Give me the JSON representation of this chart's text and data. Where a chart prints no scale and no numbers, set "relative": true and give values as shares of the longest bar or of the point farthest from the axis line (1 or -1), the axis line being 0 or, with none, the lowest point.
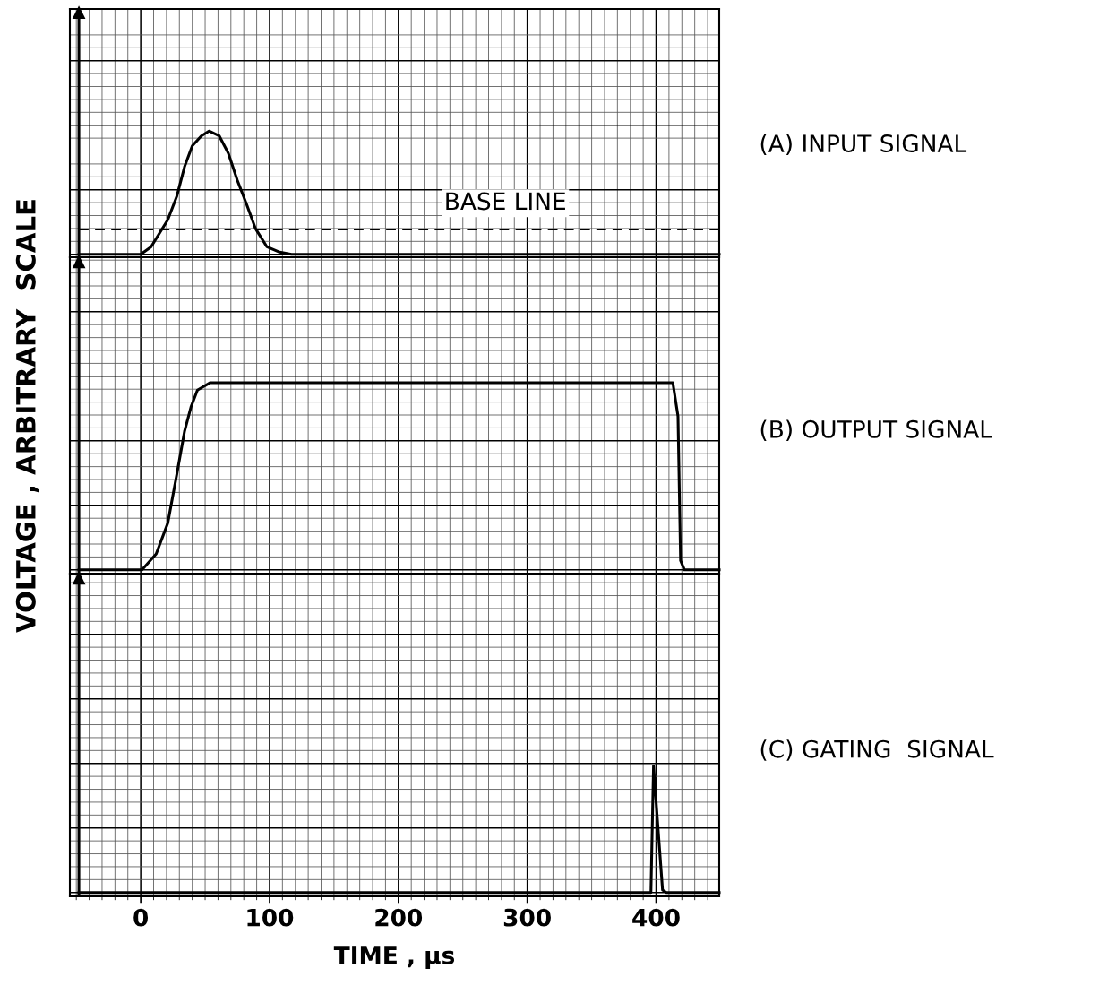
{
  "chart_data": [
    {
      "type": "line",
      "relative": true,
      "xlim": [
        -55,
        449
      ],
      "xticks": [
        0,
        100,
        200,
        300,
        400
      ],
      "tick_labels": false,
      "grid": true,
      "marker": "none",
      "annotations": [
        {
          "text": "BASE LINE",
          "x": 283,
          "y": 0.2
        }
      ],
      "ref_lines": [
        {
          "axis": "x",
          "value": -48
        }
      ],
      "series": [
        {
          "name": "(A) INPUT SIGNAL",
          "color": "#000000",
          "line_style": "solid",
          "x": [
            -48,
            0,
            8,
            21,
            28,
            34,
            40,
            47,
            53,
            61,
            68,
            75,
            82,
            89,
            98,
            107,
            117,
            449
          ],
          "values": [
            0,
            0,
            0.06,
            0.28,
            0.47,
            0.71,
            0.88,
            0.96,
            1,
            0.96,
            0.82,
            0.6,
            0.41,
            0.21,
            0.06,
            0.02,
            0,
            0
          ]
        },
        {
          "color": "#000000",
          "line_style": "dashed",
          "x": [
            -48,
            449
          ],
          "values": [
            0.2,
            0.2
          ]
        }
      ]
    },
    {
      "type": "line",
      "relative": true,
      "ylabel": "VOLTAGE , ARBITRARY  SCALE",
      "ref_lines": [
        {
          "axis": "x",
          "value": -48
        }
      ],
      "xlim": [
        -55,
        449
      ],
      "xticks": [
        0,
        100,
        200,
        300,
        400
      ],
      "tick_labels": false,
      "grid": true,
      "marker": "none",
      "series": [
        {
          "name": "(B) OUTPUT SIGNAL",
          "color": "#000000",
          "line_style": "solid",
          "x": [
            -48,
            1,
            12,
            21,
            28,
            34,
            39,
            44,
            54,
            413,
            417,
            419,
            422,
            449
          ],
          "values": [
            0,
            0,
            0.085,
            0.25,
            0.51,
            0.74,
            0.87,
            0.96,
            1,
            1,
            0.82,
            0.05,
            0,
            0
          ]
        }
      ]
    },
    {
      "type": "line",
      "relative": true,
      "xlabel": "TIME , µs",
      "ref_lines": [
        {
          "axis": "x",
          "value": -48
        }
      ],
      "xlim": [
        -55,
        449
      ],
      "xticks": [
        0,
        100,
        200,
        300,
        400
      ],
      "tick_labels": "x",
      "grid": true,
      "marker": "none",
      "series": [
        {
          "name": "(C) GATING  SIGNAL",
          "color": "#000000",
          "line_style": "solid",
          "x": [
            -48,
            396,
            398,
            405,
            408,
            449
          ],
          "values": [
            0,
            0,
            1,
            0.02,
            0,
            0
          ]
        }
      ]
    }
  ]
}
